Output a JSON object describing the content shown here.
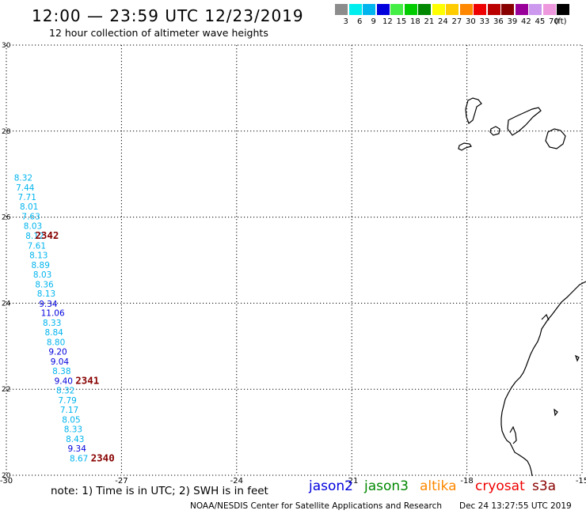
{
  "header": {
    "title": "12:00 — 23:59 UTC 12/23/2019",
    "subtitle": "12 hour collection of altimeter wave heights"
  },
  "legend": {
    "unit": "(ft)",
    "bins": [
      {
        "label": "3",
        "color": "#8c8c8c"
      },
      {
        "label": "6",
        "color": "#00eeee"
      },
      {
        "label": "9",
        "color": "#00b4ee"
      },
      {
        "label": "12",
        "color": "#0000dd"
      },
      {
        "label": "15",
        "color": "#44ee44"
      },
      {
        "label": "18",
        "color": "#00cc00"
      },
      {
        "label": "21",
        "color": "#008800"
      },
      {
        "label": "24",
        "color": "#ffff00"
      },
      {
        "label": "27",
        "color": "#ffcc00"
      },
      {
        "label": "30",
        "color": "#ff8800"
      },
      {
        "label": "33",
        "color": "#ee0000"
      },
      {
        "label": "36",
        "color": "#bb0000"
      },
      {
        "label": "39",
        "color": "#880000"
      },
      {
        "label": "42",
        "color": "#990099"
      },
      {
        "label": "45",
        "color": "#cc99ee"
      },
      {
        "label": "70",
        "color": "#ee99dd"
      },
      {
        "label": "",
        "color": "#000000"
      }
    ]
  },
  "map": {
    "lon_range": [
      -30,
      -15
    ],
    "lat_range": [
      20,
      30
    ],
    "lon_ticks": [
      "-30",
      "-27",
      "-24",
      "-21",
      "-18",
      "-15"
    ],
    "lat_ticks": [
      "30",
      "28",
      "26",
      "24",
      "22",
      "20"
    ],
    "observations": [
      {
        "value": "8.32",
        "lon": -29.8,
        "lat": 26.85,
        "color": "#00b4ee"
      },
      {
        "value": "7.44",
        "lon": -29.75,
        "lat": 26.62,
        "color": "#00b4ee"
      },
      {
        "value": "7.71",
        "lon": -29.7,
        "lat": 26.4,
        "color": "#00b4ee"
      },
      {
        "value": "8.01",
        "lon": -29.65,
        "lat": 26.18,
        "color": "#00b4ee"
      },
      {
        "value": "7.63",
        "lon": -29.6,
        "lat": 25.95,
        "color": "#00b4ee"
      },
      {
        "value": "8.03",
        "lon": -29.55,
        "lat": 25.73,
        "color": "#00b4ee"
      },
      {
        "value": "8.12",
        "lon": -29.5,
        "lat": 25.5,
        "color": "#00b4ee"
      },
      {
        "value": "7.61",
        "lon": -29.45,
        "lat": 25.27,
        "color": "#00b4ee"
      },
      {
        "value": "8.13",
        "lon": -29.4,
        "lat": 25.05,
        "color": "#00b4ee"
      },
      {
        "value": "8.89",
        "lon": -29.35,
        "lat": 24.82,
        "color": "#00b4ee"
      },
      {
        "value": "8.03",
        "lon": -29.3,
        "lat": 24.6,
        "color": "#00b4ee"
      },
      {
        "value": "8.36",
        "lon": -29.25,
        "lat": 24.37,
        "color": "#00b4ee"
      },
      {
        "value": "8.13",
        "lon": -29.2,
        "lat": 24.15,
        "color": "#00b4ee"
      },
      {
        "value": "9.34",
        "lon": -29.15,
        "lat": 23.92,
        "color": "#0000dd"
      },
      {
        "value": "11.06",
        "lon": -29.1,
        "lat": 23.7,
        "color": "#0000dd"
      },
      {
        "value": "8.33",
        "lon": -29.05,
        "lat": 23.47,
        "color": "#00b4ee"
      },
      {
        "value": "8.84",
        "lon": -29.0,
        "lat": 23.25,
        "color": "#00b4ee"
      },
      {
        "value": "8.80",
        "lon": -28.95,
        "lat": 23.02,
        "color": "#00b4ee"
      },
      {
        "value": "9.20",
        "lon": -28.9,
        "lat": 22.8,
        "color": "#0000dd"
      },
      {
        "value": "9.04",
        "lon": -28.85,
        "lat": 22.57,
        "color": "#0000dd"
      },
      {
        "value": "8.38",
        "lon": -28.8,
        "lat": 22.35,
        "color": "#00b4ee"
      },
      {
        "value": "9.40",
        "lon": -28.75,
        "lat": 22.12,
        "color": "#0000dd"
      },
      {
        "value": "8.32",
        "lon": -28.7,
        "lat": 21.9,
        "color": "#00b4ee"
      },
      {
        "value": "7.79",
        "lon": -28.65,
        "lat": 21.67,
        "color": "#00b4ee"
      },
      {
        "value": "7.17",
        "lon": -28.6,
        "lat": 21.45,
        "color": "#00b4ee"
      },
      {
        "value": "8.05",
        "lon": -28.55,
        "lat": 21.22,
        "color": "#00b4ee"
      },
      {
        "value": "8.33",
        "lon": -28.5,
        "lat": 21.0,
        "color": "#00b4ee"
      },
      {
        "value": "8.43",
        "lon": -28.45,
        "lat": 20.77,
        "color": "#00b4ee"
      },
      {
        "value": "9.34",
        "lon": -28.4,
        "lat": 20.55,
        "color": "#0000dd"
      },
      {
        "value": "8.67",
        "lon": -28.35,
        "lat": 20.32,
        "color": "#00b4ee"
      }
    ],
    "time_labels": [
      {
        "value": "2342",
        "lon": -29.25,
        "lat": 25.5
      },
      {
        "value": "2341",
        "lon": -28.2,
        "lat": 22.12
      },
      {
        "value": "2340",
        "lon": -27.8,
        "lat": 20.32
      }
    ],
    "time_label_color": "#880000"
  },
  "footer": {
    "note": "note: 1) Time is in UTC; 2) SWH is in feet",
    "satellites": [
      {
        "name": "jason2",
        "color": "#0000dd"
      },
      {
        "name": "jason3",
        "color": "#008800"
      },
      {
        "name": "altika",
        "color": "#ff8800"
      },
      {
        "name": "cryosat",
        "color": "#ee0000"
      },
      {
        "name": "s3a",
        "color": "#880000"
      }
    ],
    "credit": "NOAA/NESDIS Center for Satellite Applications and Research",
    "timestamp": "Dec 24 13:27:55 UTC 2019"
  }
}
